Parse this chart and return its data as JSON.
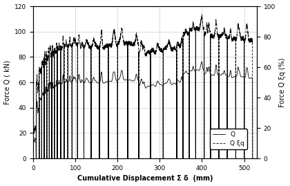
{
  "xlabel": "Cumulative Displacement Σ δ  (mm)",
  "ylabel_left": "Force Q ( kN)",
  "ylabel_right": "Force Q ξq (%)",
  "xlim": [
    0,
    530
  ],
  "ylim_left": [
    0,
    120
  ],
  "ylim_right": [
    0,
    100
  ],
  "yticks_left": [
    0,
    20,
    40,
    60,
    80,
    100,
    120
  ],
  "yticks_right": [
    0,
    20,
    40,
    60,
    80,
    100
  ],
  "xticks": [
    0,
    100,
    200,
    300,
    400,
    500
  ],
  "legend_Q": "Q",
  "legend_Xiq": "Q ξq",
  "bg_color": "#ffffff",
  "grid_color": "#cccccc",
  "cycle_drops": [
    7,
    14,
    20,
    26,
    32,
    38,
    44,
    50,
    57,
    65,
    73,
    82,
    92,
    105,
    120,
    137,
    157,
    178,
    200,
    224,
    250,
    278,
    308,
    340,
    355,
    370,
    385,
    405,
    420,
    440,
    460,
    480,
    500,
    520
  ],
  "q_baseline_segments": [
    [
      0,
      7,
      5,
      20
    ],
    [
      7,
      14,
      30,
      45
    ],
    [
      14,
      20,
      40,
      52
    ],
    [
      20,
      26,
      45,
      54
    ],
    [
      26,
      32,
      48,
      56
    ],
    [
      32,
      38,
      50,
      57
    ],
    [
      38,
      44,
      52,
      58
    ],
    [
      44,
      50,
      53,
      59
    ],
    [
      50,
      57,
      55,
      60
    ],
    [
      57,
      65,
      56,
      61
    ],
    [
      65,
      73,
      57,
      61
    ],
    [
      73,
      82,
      58,
      62
    ],
    [
      82,
      92,
      58,
      62
    ],
    [
      92,
      105,
      59,
      62
    ],
    [
      105,
      120,
      58,
      62
    ],
    [
      120,
      137,
      57,
      61
    ],
    [
      137,
      157,
      57,
      61
    ],
    [
      157,
      178,
      58,
      62
    ],
    [
      178,
      200,
      59,
      62
    ],
    [
      200,
      224,
      60,
      63
    ],
    [
      224,
      250,
      60,
      63
    ],
    [
      250,
      278,
      52,
      60
    ],
    [
      278,
      308,
      53,
      61
    ],
    [
      308,
      340,
      54,
      62
    ],
    [
      340,
      355,
      58,
      64
    ],
    [
      355,
      370,
      65,
      68
    ],
    [
      370,
      385,
      68,
      70
    ],
    [
      385,
      405,
      68,
      71
    ],
    [
      405,
      420,
      65,
      68
    ],
    [
      420,
      440,
      64,
      67
    ],
    [
      440,
      460,
      63,
      67
    ],
    [
      460,
      480,
      62,
      66
    ],
    [
      480,
      500,
      62,
      66
    ],
    [
      500,
      520,
      61,
      65
    ]
  ],
  "xiq_extra_above": 12
}
